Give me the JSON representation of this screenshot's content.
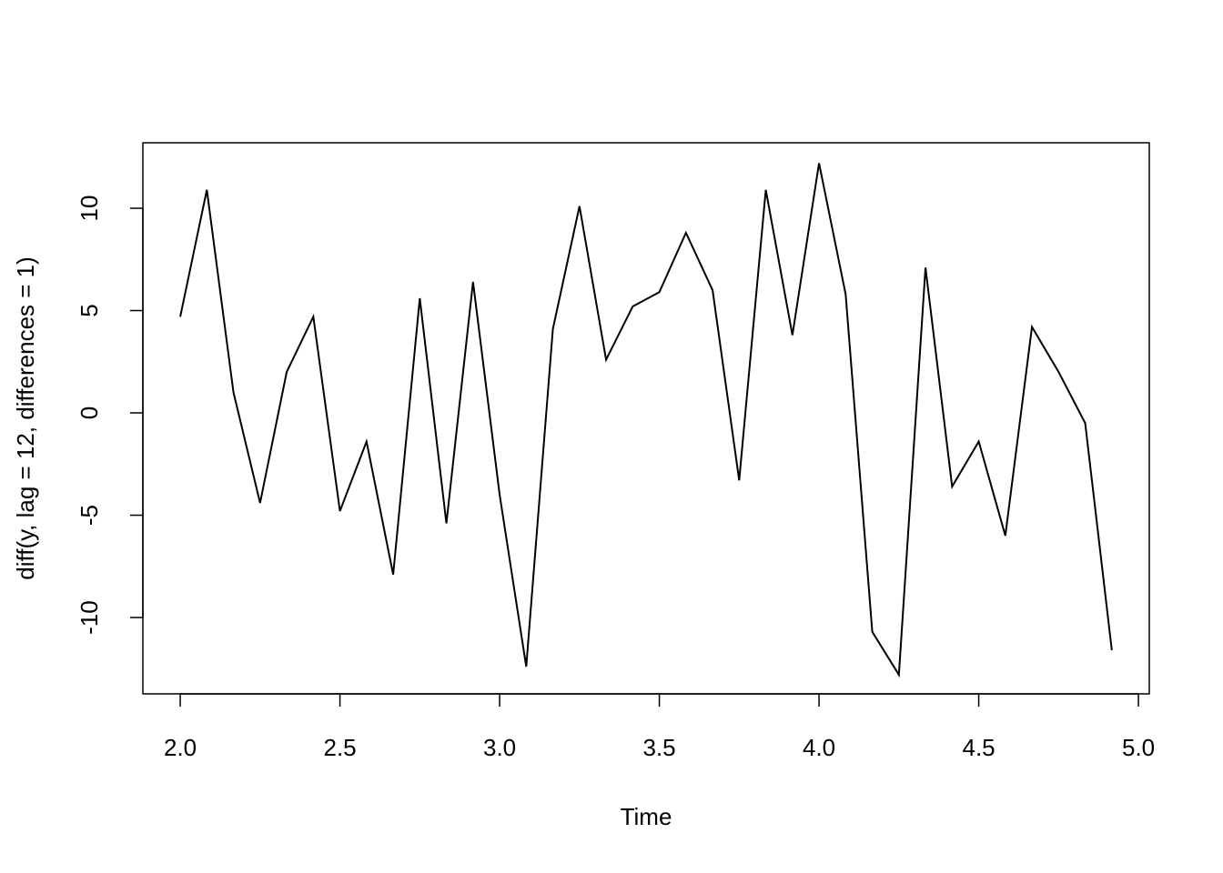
{
  "chart_data": {
    "type": "line",
    "x_label": "Time",
    "y_label": "diff(y, lag = 12, differences = 1)",
    "x": [
      2.0,
      2.0833,
      2.1667,
      2.25,
      2.3333,
      2.4167,
      2.5,
      2.5833,
      2.6667,
      2.75,
      2.8333,
      2.9167,
      3.0,
      3.0833,
      3.1667,
      3.25,
      3.3333,
      3.4167,
      3.5,
      3.5833,
      3.6667,
      3.75,
      3.8333,
      3.9167,
      4.0,
      4.0833,
      4.1667,
      4.25,
      4.3333,
      4.4167,
      4.5,
      4.5833,
      4.6667,
      4.75,
      4.8333,
      4.9167
    ],
    "series": [
      {
        "color": "#000000",
        "values": [
          4.7,
          10.9,
          1.0,
          -4.4,
          2.0,
          4.7,
          -4.8,
          -1.4,
          -7.9,
          5.6,
          -5.4,
          6.4,
          -4.0,
          -12.4,
          4.1,
          10.1,
          2.6,
          5.2,
          5.9,
          8.8,
          6.0,
          -3.3,
          10.9,
          3.8,
          12.2,
          5.8,
          -10.7,
          -12.8,
          7.1,
          -3.6,
          -1.4,
          -6.0,
          4.2,
          2.0,
          -0.5,
          -11.6
        ]
      }
    ],
    "xlim": [
      1.883,
      5.034
    ],
    "ylim": [
      -13.73,
      13.2
    ],
    "xticks": [
      {
        "value": 2.0,
        "label": "2.0"
      },
      {
        "value": 2.5,
        "label": "2.5"
      },
      {
        "value": 3.0,
        "label": "3.0"
      },
      {
        "value": 3.5,
        "label": "3.5"
      },
      {
        "value": 4.0,
        "label": "4.0"
      },
      {
        "value": 4.5,
        "label": "4.5"
      },
      {
        "value": 5.0,
        "label": "5.0"
      }
    ],
    "yticks": [
      -10,
      -5,
      0,
      5,
      10
    ],
    "grid": false
  }
}
